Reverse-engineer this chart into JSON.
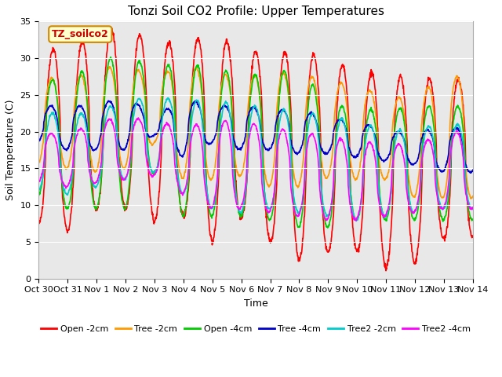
{
  "title": "Tonzi Soil CO2 Profile: Upper Temperatures",
  "xlabel": "Time",
  "ylabel": "Soil Temperature (C)",
  "ylim": [
    0,
    35
  ],
  "xlim": [
    0,
    15
  ],
  "xtick_labels": [
    "Oct 30",
    "Oct 31",
    "Nov 1",
    "Nov 2",
    "Nov 3",
    "Nov 4",
    "Nov 5",
    "Nov 6",
    "Nov 7",
    "Nov 8",
    "Nov 9",
    "Nov 10",
    "Nov 11",
    "Nov 12",
    "Nov 13",
    "Nov 14"
  ],
  "box_label": "TZ_soilco2",
  "box_bg": "#ffffcc",
  "box_border": "#cc0000",
  "series_colors": [
    "#ff0000",
    "#ff9900",
    "#00cc00",
    "#0000cc",
    "#00cccc",
    "#ff00ff"
  ],
  "series_labels": [
    "Open -2cm",
    "Tree -2cm",
    "Open -4cm",
    "Tree -4cm",
    "Tree2 -2cm",
    "Tree2 -4cm"
  ],
  "bg_color": "#e8e8e8",
  "title_fontsize": 11,
  "label_fontsize": 9,
  "tick_fontsize": 8
}
